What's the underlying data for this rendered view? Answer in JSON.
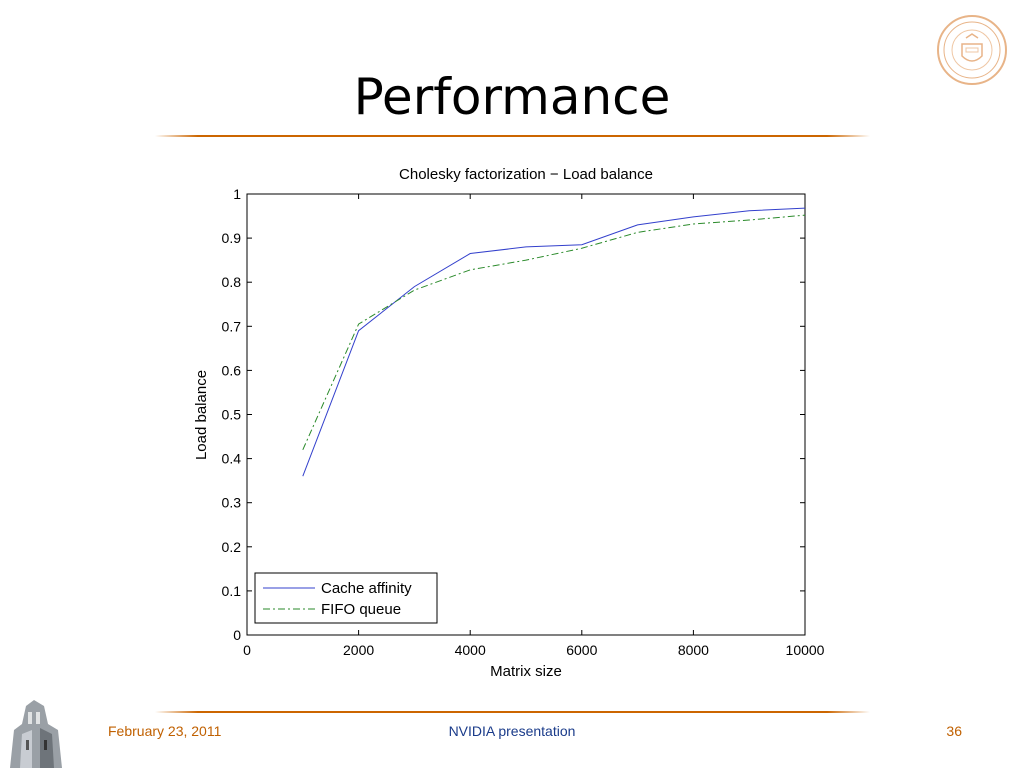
{
  "slide": {
    "title": "Performance",
    "footer_date": "February 23, 2011",
    "footer_center": "NVIDIA presentation",
    "page_number": "36"
  },
  "colors": {
    "accent_rule": "#cc6600",
    "footer_text": "#c06000",
    "footer_center_text": "#1a3b8a",
    "cache_affinity_line": "#3340cc",
    "fifo_queue_line": "#2a8a2a"
  },
  "chart_data": {
    "type": "line",
    "title": "Cholesky factorization − Load balance",
    "xlabel": "Matrix size",
    "ylabel": "Load balance",
    "xlim": [
      0,
      10000
    ],
    "ylim": [
      0,
      1
    ],
    "xticks": [
      0,
      2000,
      4000,
      6000,
      8000,
      10000
    ],
    "xtick_labels": [
      "0",
      "2000",
      "4000",
      "6000",
      "8000",
      "10000"
    ],
    "yticks": [
      0,
      0.1,
      0.2,
      0.3,
      0.4,
      0.5,
      0.6,
      0.7,
      0.8,
      0.9,
      1
    ],
    "ytick_labels": [
      "0",
      "0.1",
      "0.2",
      "0.3",
      "0.4",
      "0.5",
      "0.6",
      "0.7",
      "0.8",
      "0.9",
      "1"
    ],
    "grid": false,
    "legend_position": "bottom-left",
    "x": [
      1000,
      2000,
      3000,
      4000,
      5000,
      6000,
      7000,
      8000,
      9000,
      10000
    ],
    "series": [
      {
        "name": "Cache affinity",
        "style": "solid",
        "color": "#3340cc",
        "values": [
          0.36,
          0.69,
          0.79,
          0.865,
          0.88,
          0.885,
          0.93,
          0.948,
          0.962,
          0.968
        ]
      },
      {
        "name": "FIFO queue",
        "style": "dash-dot",
        "color": "#2a8a2a",
        "values": [
          0.42,
          0.705,
          0.782,
          0.828,
          0.85,
          0.877,
          0.913,
          0.932,
          0.941,
          0.952
        ]
      }
    ]
  }
}
